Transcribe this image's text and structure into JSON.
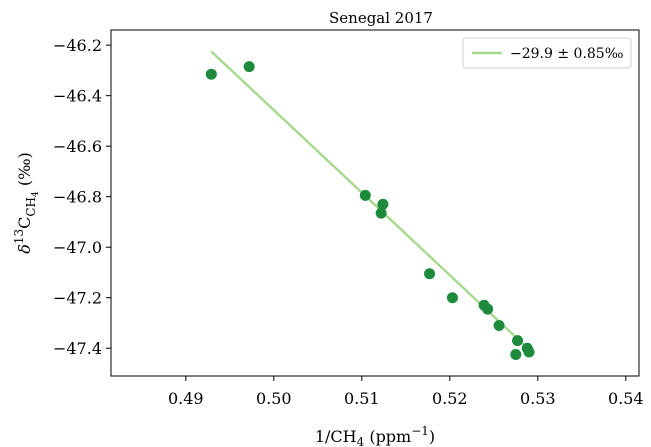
{
  "chart_data": {
    "type": "scatter",
    "title": "Senegal 2017",
    "xlabel_main": "1/CH",
    "xlabel_sub": "4",
    "xlabel_unit_pre": " (ppm",
    "xlabel_unit_sup": "−1",
    "xlabel_unit_post": ")",
    "ylabel_delta": "δ",
    "ylabel_sup": "13",
    "ylabel_c": "C",
    "ylabel_sub_ch": "CH",
    "ylabel_sub_4": "4",
    "ylabel_unit": " (‰)",
    "xlim": [
      0.4815,
      0.5415
    ],
    "ylim": [
      -47.51,
      -46.14
    ],
    "xticks": [
      0.49,
      0.5,
      0.51,
      0.52,
      0.53,
      0.54
    ],
    "xtick_labels": [
      "0.49",
      "0.50",
      "0.51",
      "0.52",
      "0.53",
      "0.54"
    ],
    "yticks": [
      -46.2,
      -46.4,
      -46.6,
      -46.8,
      -47.0,
      -47.2,
      -47.4
    ],
    "ytick_labels": [
      "−46.2",
      "−46.4",
      "−46.6",
      "−46.8",
      "−47.0",
      "−47.2",
      "−47.4"
    ],
    "points": {
      "x": [
        0.4929,
        0.4972,
        0.5104,
        0.5124,
        0.5122,
        0.5177,
        0.5203,
        0.5239,
        0.5243,
        0.5256,
        0.5277,
        0.5275,
        0.5288,
        0.529
      ],
      "y": [
        -46.315,
        -46.285,
        -46.795,
        -46.83,
        -46.865,
        -47.105,
        -47.2,
        -47.23,
        -47.245,
        -47.31,
        -47.37,
        -47.425,
        -47.4,
        -47.415
      ]
    },
    "fit_line": {
      "x": [
        0.4929,
        0.529
      ],
      "y": [
        -46.225,
        -47.405
      ]
    },
    "legend": {
      "label": "−29.9 ± 0.85‰",
      "position": "top-right"
    },
    "colors": {
      "points": "#1e8a3c",
      "line": "#a6d98d"
    }
  }
}
